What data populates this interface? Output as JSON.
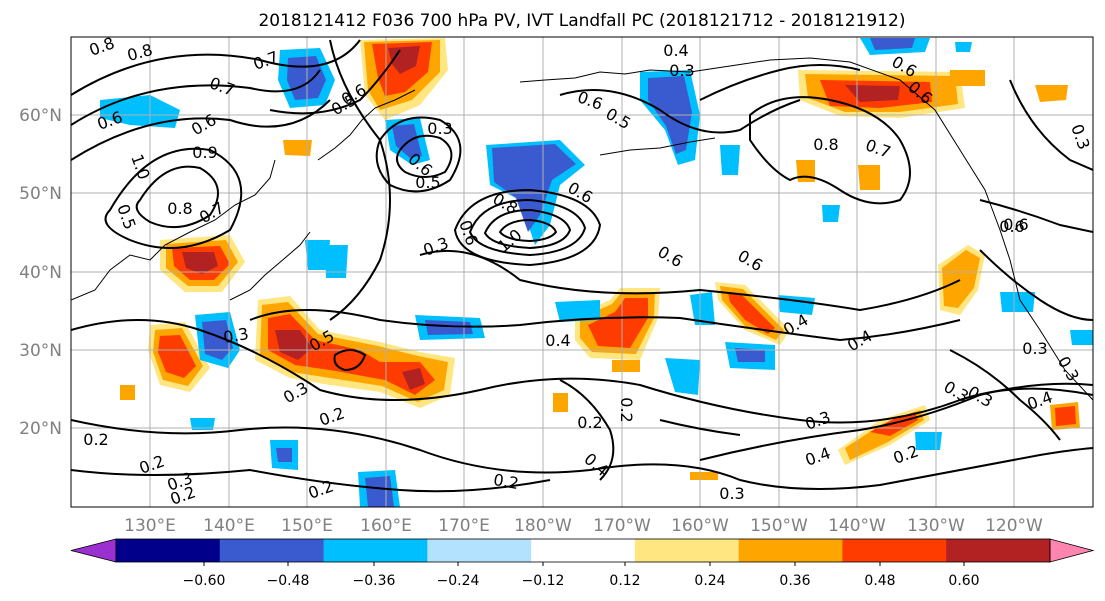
{
  "title": "2018121412 F036 700 hPa PV, IVT Landfall PC (2018121712 - 2018121912)",
  "map": {
    "lon_labels": [
      "130°E",
      "140°E",
      "150°E",
      "160°E",
      "170°E",
      "180°W",
      "170°W",
      "160°W",
      "150°W",
      "140°W",
      "130°W",
      "120°W"
    ],
    "lat_labels": [
      "60°N",
      "50°N",
      "40°N",
      "30°N",
      "20°N"
    ],
    "contour_labels": [
      "0.8",
      "0.8",
      "0.7",
      "0.7",
      "0.6",
      "0.6",
      "1.0",
      "0.5",
      "0.8",
      "0.7",
      "0.9",
      "0.6",
      "0.3",
      "0.6",
      "0.5",
      "0.6",
      "0.5",
      "0.4",
      "0.3",
      "0.6",
      "0.8",
      "1.0",
      "0.6",
      "0.6",
      "0.6",
      "0.8",
      "0.7",
      "0.6",
      "0.6",
      "0.6",
      "0.3",
      "0.5",
      "0.3",
      "0.3",
      "0.5",
      "0.3",
      "0.4",
      "0.4",
      "0.4",
      "0.3",
      "0.2",
      "0.2",
      "0.4",
      "0.2",
      "0.2",
      "0.3",
      "0.2",
      "0.2",
      "0.3",
      "0.4",
      "0.3",
      "0.3",
      "0.2",
      "0.3",
      "0.4",
      "0.3",
      "0.2",
      "0.6",
      "0.2"
    ],
    "colors": {
      "land_outline": "#000000",
      "gridline": "#b0b0b0",
      "axis_label": "#808080"
    }
  },
  "colorbar": {
    "ticks": [
      "−0.60",
      "−0.48",
      "−0.36",
      "−0.24",
      "−0.12",
      "0.12",
      "0.24",
      "0.36",
      "0.48",
      "0.60"
    ],
    "colors": [
      "#9b30d0",
      "#00008b",
      "#3a5bd0",
      "#00bfff",
      "#b3e2ff",
      "#ffffff",
      "#ffe680",
      "#ffa500",
      "#ff3c00",
      "#b22222",
      "#ff85b0"
    ]
  }
}
